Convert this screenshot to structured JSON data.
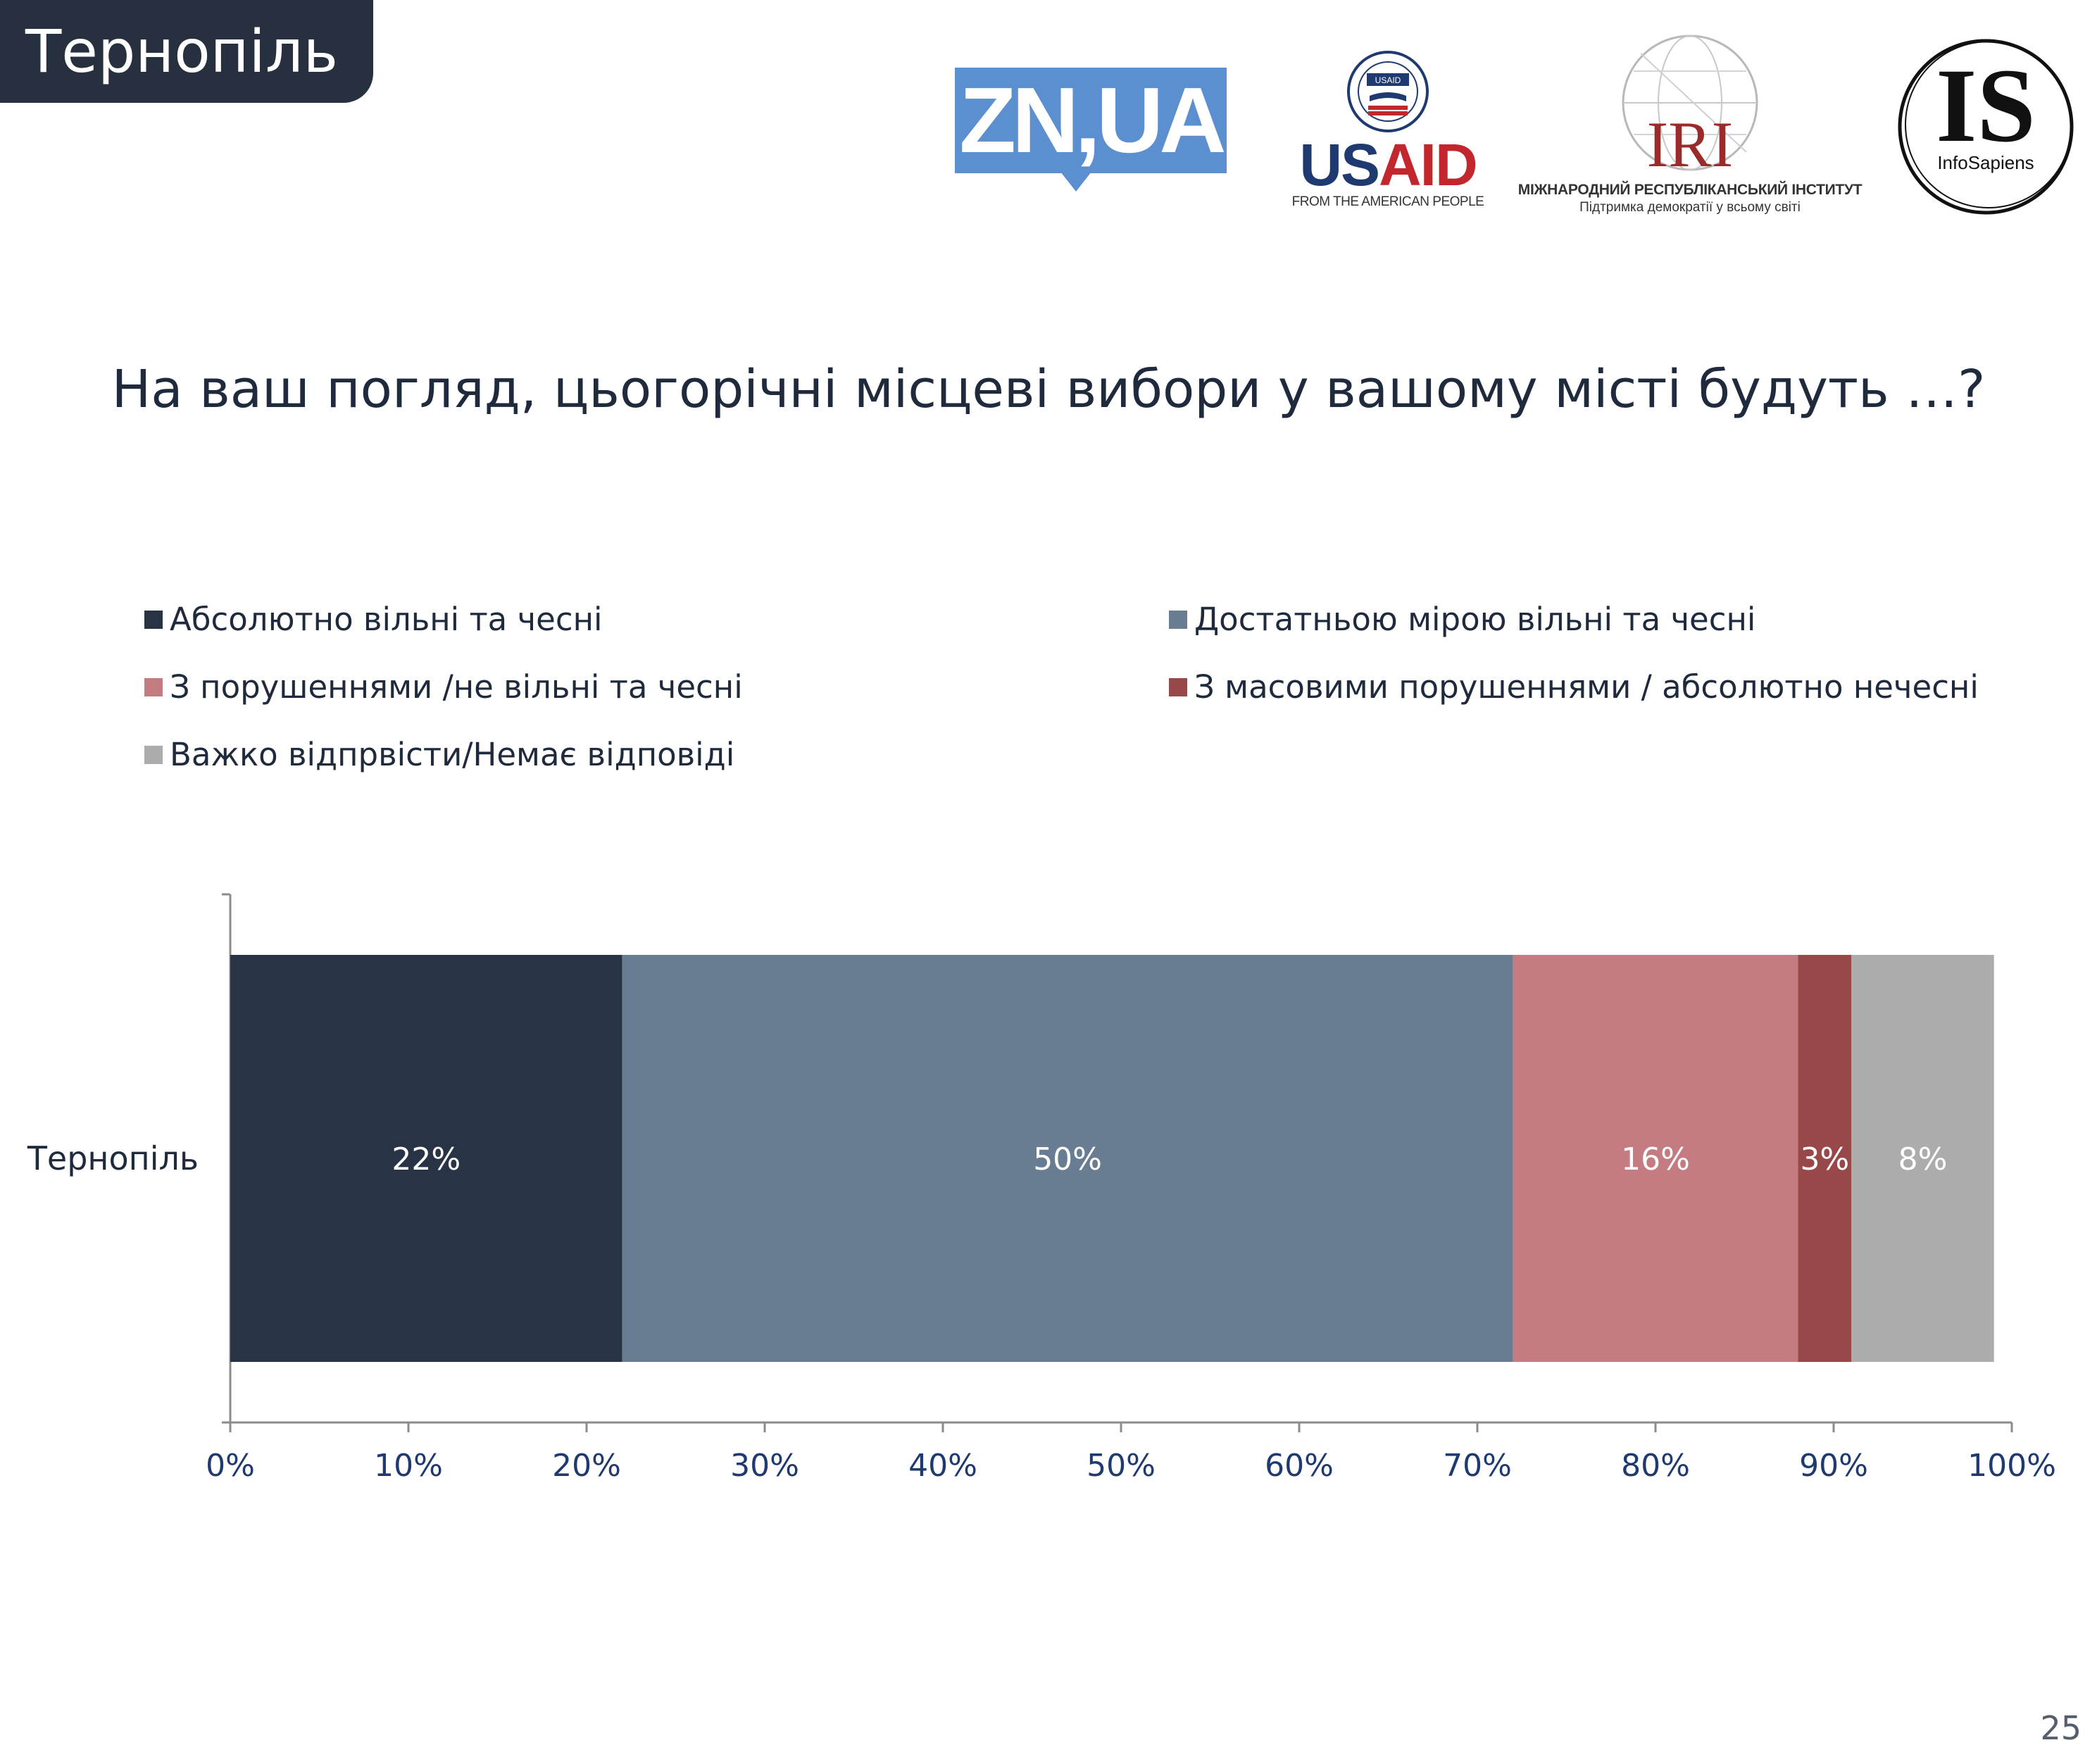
{
  "header": {
    "city_tab": "Тернопіль"
  },
  "logos": {
    "zn": "ZN,UA",
    "usaid_word_us": "US",
    "usaid_word_aid": "AID",
    "usaid_seal_text": "USAID",
    "usaid_tagline": "FROM THE AMERICAN PEOPLE",
    "iri_mark": "IRI",
    "iri_line1": "МІЖНАРОДНИЙ РЕСПУБЛІКАНСЬКИЙ ІНСТИТУТ",
    "iri_line2": "Підтримка демократії у всьому світі",
    "is_mark": "IS",
    "is_name": "InfoSapiens",
    "colors": {
      "zn": "#5b8fd0",
      "usaid_blue": "#1f3a70",
      "usaid_red": "#c1272d",
      "iri_red": "#9b2b2b"
    }
  },
  "question": "На ваш погляд, цьогорічні місцеві вибори у вашому місті будуть …?",
  "legend": [
    {
      "label": "Абсолютно вільні та чесні",
      "color": "#283345"
    },
    {
      "label": "Достатньою мірою вільні та чесні",
      "color": "#687d91"
    },
    {
      "label": "З порушеннями /не вільні та чесні",
      "color": "#c47b82"
    },
    {
      "label": "З масовими порушеннями / абсолютно нечесні",
      "color": "#984849"
    },
    {
      "label": "Важко відпрвісти/Немає відповіді",
      "color": "#acacac"
    }
  ],
  "chart_data": {
    "type": "bar",
    "orientation": "horizontal",
    "stacked": true,
    "categories": [
      "Тернопіль"
    ],
    "series": [
      {
        "name": "Абсолютно вільні та чесні",
        "values": [
          22
        ],
        "label": "22%",
        "color": "#283345"
      },
      {
        "name": "Достатньою мірою вільні та чесні",
        "values": [
          50
        ],
        "label": "50%",
        "color": "#687d91"
      },
      {
        "name": "З порушеннями /не вільні та чесні",
        "values": [
          16
        ],
        "label": "16%",
        "color": "#c47b82"
      },
      {
        "name": "З масовими порушеннями / абсолютно нечесні",
        "values": [
          3
        ],
        "label": "3%",
        "color": "#984849"
      },
      {
        "name": "Важко відпрвісти/Немає відповіді",
        "values": [
          8
        ],
        "label": "8%",
        "color": "#acacac"
      }
    ],
    "xlim": [
      0,
      100
    ],
    "xticks": [
      "0%",
      "10%",
      "20%",
      "30%",
      "40%",
      "50%",
      "60%",
      "70%",
      "80%",
      "90%",
      "100%"
    ],
    "xlabel": "",
    "ylabel": "",
    "grid": false,
    "legend_position": "top"
  },
  "footer": {
    "page_number": "25"
  }
}
